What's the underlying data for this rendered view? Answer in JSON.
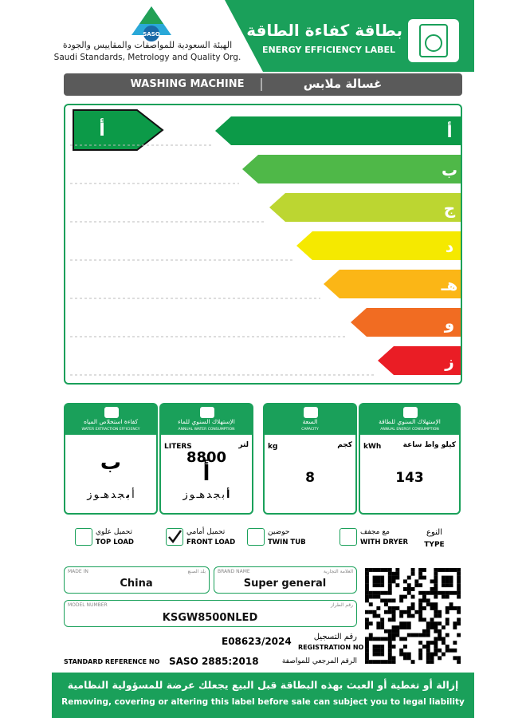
{
  "header": {
    "logo_text": "SASO",
    "org_ar": "الهيئة السعودية للمواصفات والمقاييس والجودة",
    "org_en": "Saudi Standards, Metrology and Quality Org.",
    "title_ar": "بطاقة كفاءة الطاقة",
    "title_en": "ENERGY EFFICIENCY LABEL"
  },
  "product": {
    "en": "WASHING MACHINE",
    "ar": "غسالة ملابس"
  },
  "rating": {
    "classes": [
      "أ",
      "ب",
      "ج",
      "د",
      "هـ",
      "و",
      "ز"
    ],
    "colors": [
      "#0c9a48",
      "#4fb848",
      "#bcd631",
      "#f5e900",
      "#fbb616",
      "#f16c22",
      "#ea1d25"
    ],
    "current": "أ"
  },
  "metrics": [
    {
      "title_ar": "كفاءة استخلاص المياه",
      "title_en": "WATER EXTRACTION EFFICIENCY",
      "class": "ب"
    },
    {
      "title_ar": "الإستهلاك السنوي للماء",
      "title_en": "ANNUAL WATER CONSUMPTION",
      "unit_en": "LITERS",
      "unit_ar": "لتر",
      "value": "8800",
      "class": "أ"
    },
    {
      "title_ar": "السعة",
      "title_en": "CAPACITY",
      "unit_en": "kg",
      "unit_ar": "كجم",
      "value": "8"
    },
    {
      "title_ar": "الإستهلاك السنوي للطاقة",
      "title_en": "ANNUAL ENERGY CONSUMPTION",
      "unit_en": "kWh",
      "unit_ar": "كيلو واط ساعة",
      "value": "143"
    }
  ],
  "type": {
    "label_ar": "النوع",
    "label_en": "TYPE",
    "options": [
      {
        "ar": "مع مجفف",
        "en": "WITH DRYER",
        "checked": false
      },
      {
        "ar": "حوضين",
        "en": "TWIN TUB",
        "checked": false
      },
      {
        "ar": "تحميل أمامي",
        "en": "FRONT LOAD",
        "checked": true
      },
      {
        "ar": "تحميل علوي",
        "en": "TOP LOAD",
        "checked": false
      }
    ]
  },
  "details": {
    "made_in": {
      "en": "MADE IN",
      "ar": "بلد الصنع",
      "value": "China"
    },
    "brand": {
      "en": "BRAND NAME",
      "ar": "العلامة التجارية",
      "value": "Super general"
    },
    "model": {
      "en": "MODEL NUMBER",
      "ar": "رقم الطراز",
      "value": "KSGW8500NLED"
    },
    "registration": {
      "value": "E08623/2024",
      "ar": "رقم التسجيل",
      "en": "REGISTRATION NO"
    },
    "standard": {
      "en": "STANDARD REFERENCE NO",
      "value": "SASO 2885:2018",
      "ar": "الرقم المرجعي للمواصفة"
    }
  },
  "footer": {
    "ar": "إزالة أو تغطية أو العبث بهذه البطاقة قبل البيع يجعلك عرضة للمسؤولية النظامية",
    "en": "Removing, covering or altering this label before sale can subject you to legal liability"
  }
}
